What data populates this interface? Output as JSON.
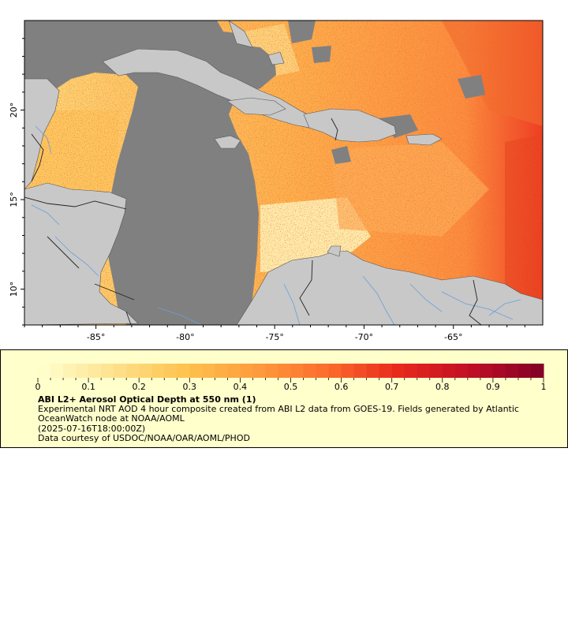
{
  "map": {
    "x_axis": {
      "range": [
        -89,
        -60
      ],
      "ticks": [
        -85,
        -80,
        -75,
        -70,
        -65
      ],
      "tick_labels": [
        "-85°",
        "-80°",
        "-75°",
        "-70°",
        "-65°"
      ]
    },
    "y_axis": {
      "range": [
        8,
        25
      ],
      "ticks": [
        10,
        15,
        20
      ],
      "tick_labels": [
        "10°",
        "15°",
        "20°"
      ]
    },
    "colors": {
      "land": "#c8c8c8",
      "no_data": "#808080",
      "rivers": "#6a9fd8",
      "borders": "#222222",
      "coast": "#444444"
    },
    "layers": [
      "aod-raster",
      "land-mask",
      "missing-data",
      "rivers",
      "country-borders"
    ]
  },
  "legend": {
    "scale": {
      "min": 0,
      "max": 1,
      "step": 0.025
    },
    "tick_labels": [
      "0",
      "0.1",
      "0.2",
      "0.3",
      "0.4",
      "0.5",
      "0.6",
      "0.7",
      "0.8",
      "0.9",
      "1"
    ],
    "colormap_stops": [
      "#ffffd0",
      "#fee391",
      "#fec44f",
      "#fd9d3c",
      "#fc6d2c",
      "#e8281c",
      "#bf0f26",
      "#800026"
    ],
    "title": "ABI L2+ Aerosol Optical Depth at 550 nm (1)",
    "description": "Experimental NRT AOD 4 hour composite created from ABI L2 data from GOES-19. Fields generated by Atlantic OceanWatch node at NOAA/AOML",
    "time": "(2025-07-16T18:00:00Z)",
    "credit": "Data courtesy of USDOC/NOAA/OAR/AOML/PHOD"
  }
}
